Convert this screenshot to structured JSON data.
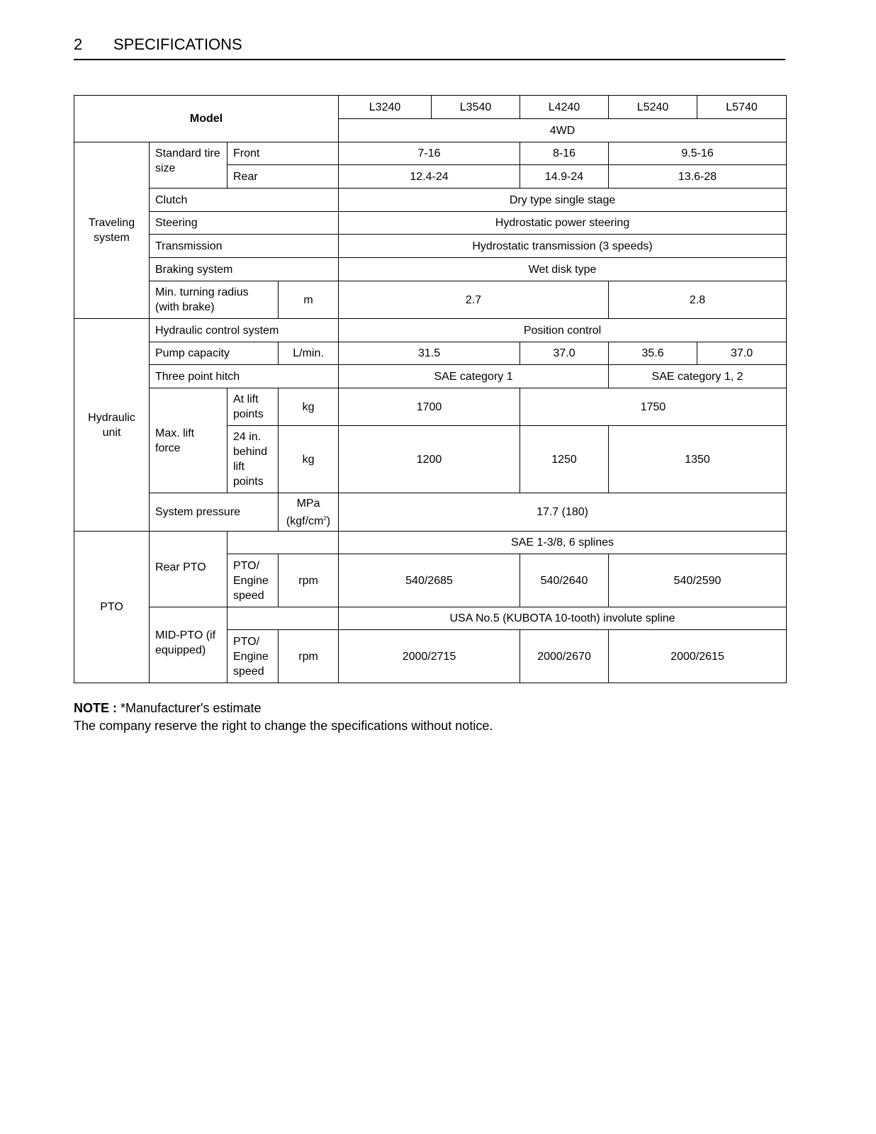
{
  "header": {
    "page_number": "2",
    "section_title": "SPECIFICATIONS"
  },
  "table": {
    "model_label": "Model",
    "models": [
      "L3240",
      "L3540",
      "L4240",
      "L5240",
      "L5740"
    ],
    "drive": "4WD",
    "traveling": {
      "group": "Traveling system",
      "tire_label": "Standard tire size",
      "front_label": "Front",
      "front": [
        "7-16",
        "8-16",
        "9.5-16"
      ],
      "rear_label": "Rear",
      "rear": [
        "12.4-24",
        "14.9-24",
        "13.6-28"
      ],
      "clutch_label": "Clutch",
      "clutch": "Dry type single stage",
      "steering_label": "Steering",
      "steering": "Hydrostatic power steering",
      "transmission_label": "Transmission",
      "transmission": "Hydrostatic transmission (3 speeds)",
      "braking_label": "Braking system",
      "braking": "Wet disk type",
      "turning_label": "Min. turning radius (with brake)",
      "turning_unit": "m",
      "turning": [
        "2.7",
        "2.8"
      ]
    },
    "hydraulic": {
      "group": "Hydraulic unit",
      "control_label": "Hydraulic control system",
      "control": "Position control",
      "pump_label": "Pump capacity",
      "pump_unit": "L/min.",
      "pump": [
        "31.5",
        "37.0",
        "35.6",
        "37.0"
      ],
      "hitch_label": "Three point hitch",
      "hitch": [
        "SAE category 1",
        "SAE category 1, 2"
      ],
      "lift_label": "Max. lift force",
      "at_lift_label": "At lift points",
      "at_lift_unit": "kg",
      "at_lift": [
        "1700",
        "1750"
      ],
      "behind_label": "24 in. behind lift points",
      "behind_unit": "kg",
      "behind": [
        "1200",
        "1250",
        "1350"
      ],
      "pressure_label": "System pressure",
      "pressure_unit": "MPa",
      "pressure_unit2": "(kgf/cm",
      "pressure_sup": "2",
      "pressure_close": ")",
      "pressure": "17.7 (180)"
    },
    "pto": {
      "group": "PTO",
      "rear_label": "Rear PTO",
      "rear_spline": "SAE 1-3/8, 6 splines",
      "speed_label": "PTO/ Engine speed",
      "speed_unit": "rpm",
      "rear_speed": [
        "540/2685",
        "540/2640",
        "540/2590"
      ],
      "mid_label": "MID-PTO (if equipped)",
      "mid_spline": "USA No.5 (KUBOTA 10-tooth) involute spline",
      "mid_speed": [
        "2000/2715",
        "2000/2670",
        "2000/2615"
      ]
    }
  },
  "note": {
    "label": "NOTE :",
    "text": " *Manufacturer's estimate",
    "line2": "The company reserve the right to change the specifications without notice."
  }
}
